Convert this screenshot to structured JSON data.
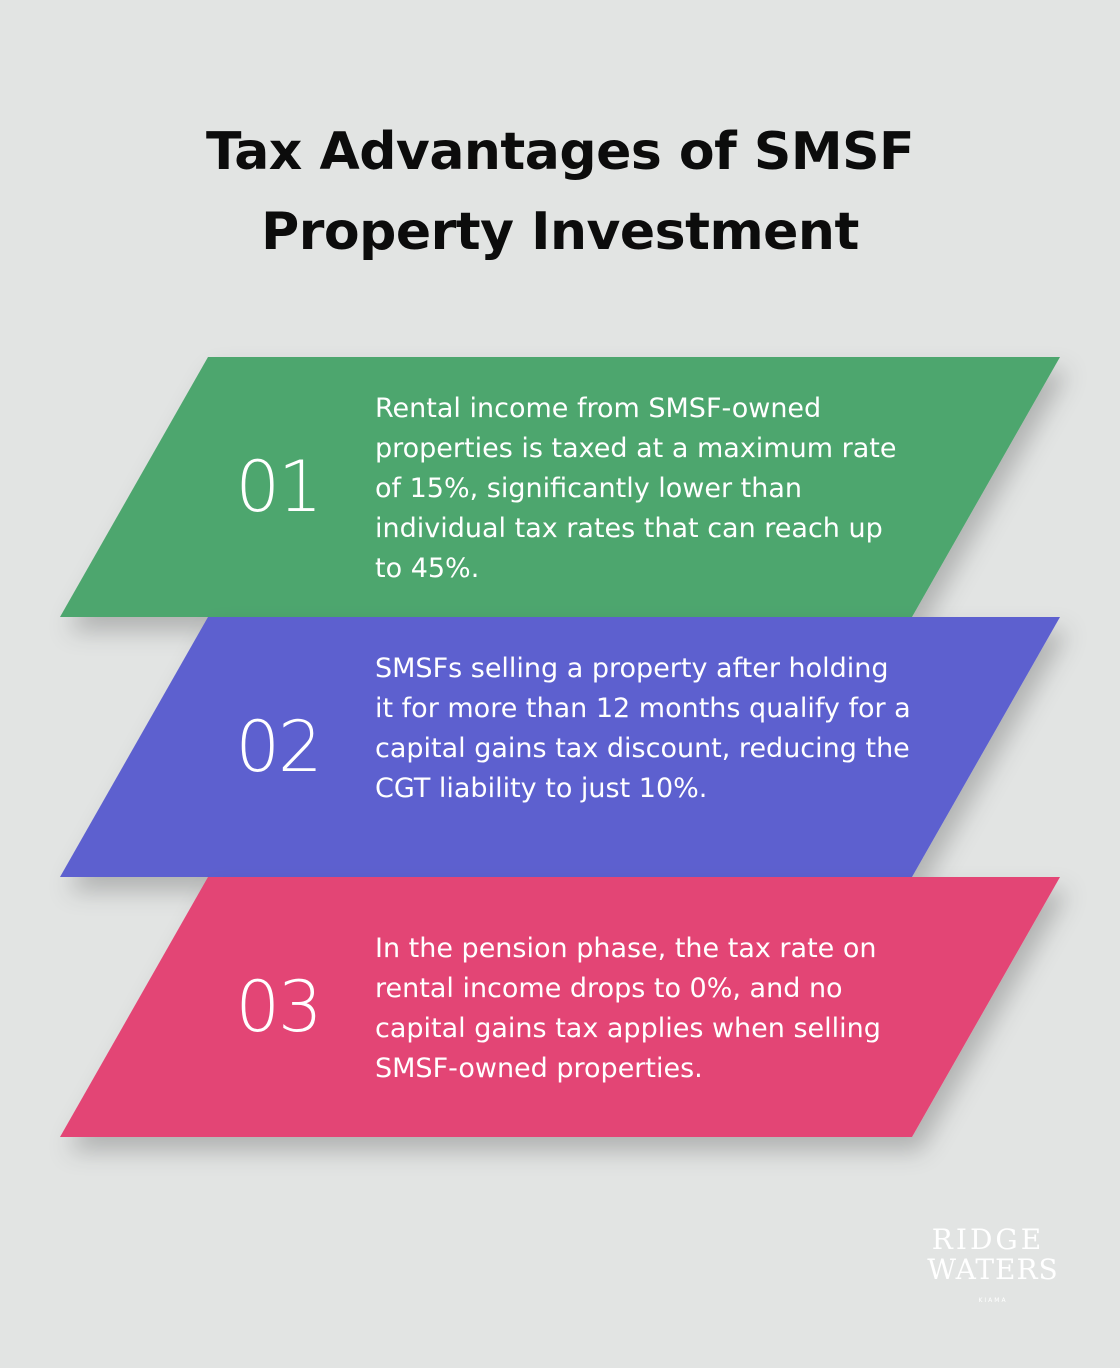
{
  "title": {
    "line1": "Tax Advantages of SMSF",
    "line2": "Property Investment"
  },
  "steps": [
    {
      "number": "01",
      "text": "Rental income from SMSF-owned properties is taxed at a maximum rate of 15%, significantly lower than individual tax rates that can reach up to 45%.",
      "color": "#4ea66e"
    },
    {
      "number": "02",
      "text": "SMSFs selling a property after holding it for more than 12 months qualify for a capital gains tax discount, reducing the CGT liability to just 10%.",
      "color": "#5d61cf"
    },
    {
      "number": "03",
      "text": "In the pension phase, the tax rate on rental income drops to 0%, and no capital gains tax applies when selling SMSF-owned properties.",
      "color": "#e34475"
    }
  ],
  "logo": {
    "line1": "RIDGE",
    "line2": "WATERS",
    "line3": "KIAMA"
  }
}
